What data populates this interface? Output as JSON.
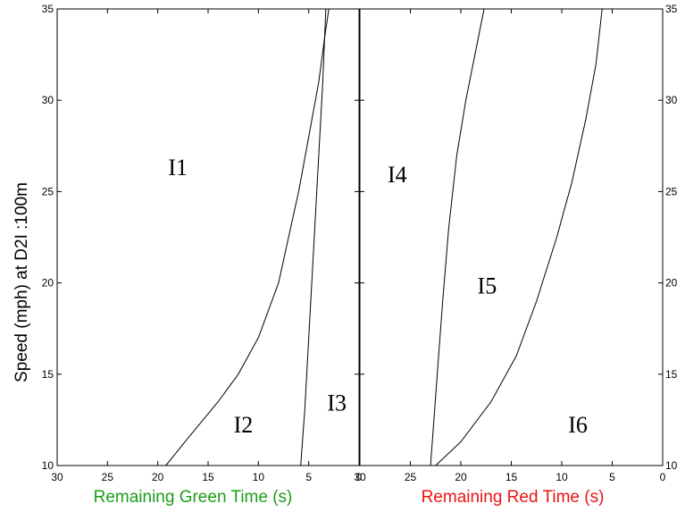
{
  "chart_data": {
    "type": "line",
    "ylabel": "Speed (mph) at D2I :100m",
    "ylim": [
      10,
      35
    ],
    "yticks": [
      10,
      15,
      20,
      25,
      30,
      35
    ],
    "grid": false,
    "panels": [
      {
        "id": "green",
        "xlabel": "Remaining Green Time (s)",
        "xlabel_color": "#1a9e1a",
        "xlim": [
          30,
          0
        ],
        "xticks": [
          30,
          25,
          20,
          15,
          10,
          5,
          0
        ],
        "curves": [
          {
            "id": "green-boundary-1",
            "points": [
              [
                19.2,
                10
              ],
              [
                17,
                11.5
              ],
              [
                14,
                13.5
              ],
              [
                12,
                15
              ],
              [
                10,
                17
              ],
              [
                8,
                20
              ],
              [
                7,
                22.5
              ],
              [
                6,
                25
              ],
              [
                5,
                28
              ],
              [
                4,
                31
              ],
              [
                3.4,
                33.5
              ],
              [
                3,
                35
              ]
            ]
          },
          {
            "id": "green-boundary-2",
            "points": [
              [
                5.8,
                10
              ],
              [
                5.4,
                13
              ],
              [
                5,
                17
              ],
              [
                4.6,
                21
              ],
              [
                4.1,
                26
              ],
              [
                3.6,
                31
              ],
              [
                3.3,
                35
              ]
            ]
          }
        ],
        "regions": [
          {
            "label": "I1",
            "x": 18,
            "y": 26.2
          },
          {
            "label": "I2",
            "x": 11.5,
            "y": 12.1
          },
          {
            "label": "I3",
            "x": 2.2,
            "y": 13.3
          }
        ]
      },
      {
        "id": "red",
        "xlabel": "Remaining Red Time (s)",
        "xlabel_color": "#ee1111",
        "xlim": [
          30,
          0
        ],
        "xticks": [
          30,
          25,
          20,
          15,
          10,
          5,
          0
        ],
        "curves": [
          {
            "id": "red-boundary-1",
            "points": [
              [
                23,
                10
              ],
              [
                22.6,
                13
              ],
              [
                22.2,
                16
              ],
              [
                21.8,
                19
              ],
              [
                21.2,
                23
              ],
              [
                20.4,
                27
              ],
              [
                19.5,
                30
              ],
              [
                18.6,
                32.5
              ],
              [
                17.7,
                35
              ]
            ]
          },
          {
            "id": "red-boundary-2",
            "points": [
              [
                22.5,
                10
              ],
              [
                20,
                11.3
              ],
              [
                17,
                13.5
              ],
              [
                14.5,
                16
              ],
              [
                12.5,
                19
              ],
              [
                10.5,
                22.5
              ],
              [
                9,
                25.5
              ],
              [
                7.6,
                29
              ],
              [
                6.6,
                32
              ],
              [
                6,
                35
              ]
            ]
          }
        ],
        "regions": [
          {
            "label": "I4",
            "x": 26.3,
            "y": 25.8
          },
          {
            "label": "I5",
            "x": 17.4,
            "y": 19.7
          },
          {
            "label": "I6",
            "x": 8.4,
            "y": 12.1
          }
        ]
      }
    ]
  }
}
